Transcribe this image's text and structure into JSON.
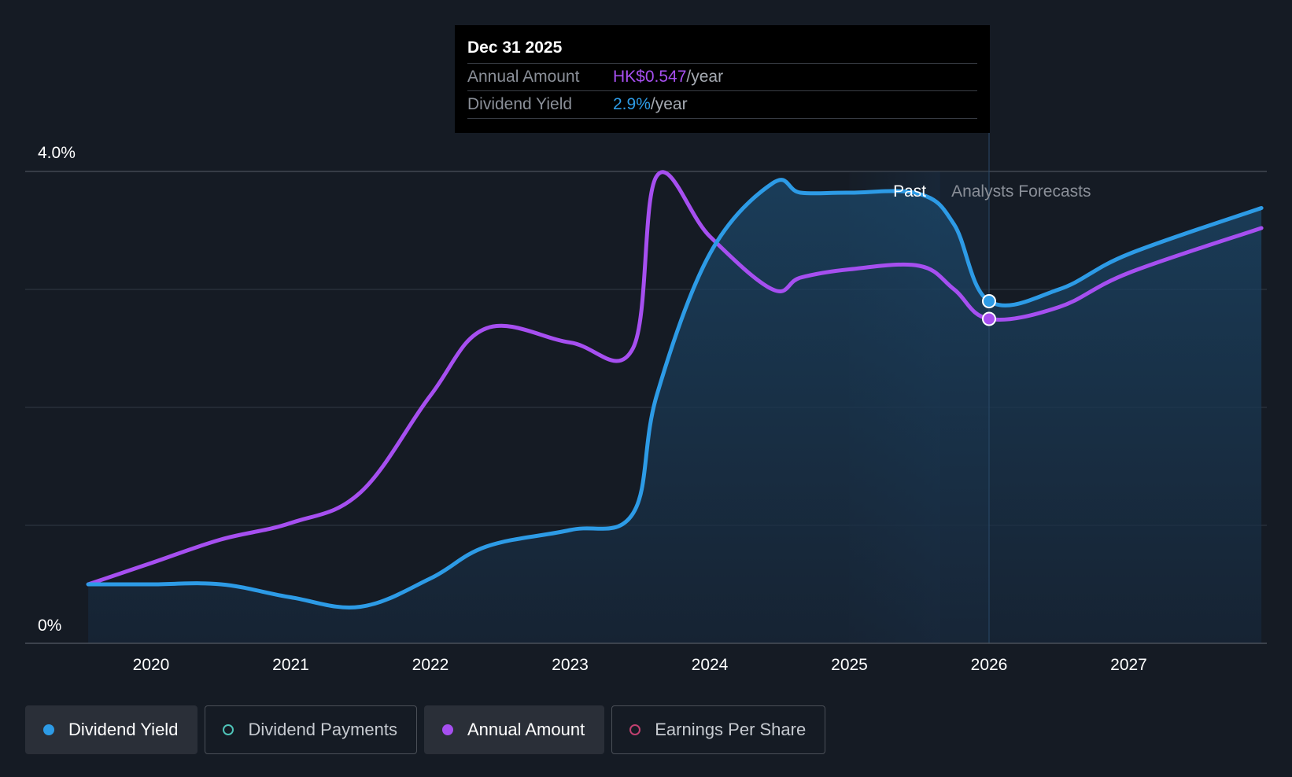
{
  "tooltip": {
    "date": "Dec 31 2025",
    "rows": [
      {
        "label": "Annual Amount",
        "value": "HK$0.547",
        "unit": "/year"
      },
      {
        "label": "Dividend Yield",
        "value": "2.9%",
        "unit": "/year"
      }
    ]
  },
  "regions": {
    "past": "Past",
    "forecast": "Analysts Forecasts"
  },
  "legend": [
    {
      "label": "Dividend Yield",
      "color": "#2d9be6",
      "active": true
    },
    {
      "label": "Dividend Payments",
      "color": "#4fc3b8",
      "active": false
    },
    {
      "label": "Annual Amount",
      "color": "#a64ff0",
      "active": true
    },
    {
      "label": "Earnings Per Share",
      "color": "#c0406f",
      "active": false
    }
  ],
  "chart_data": {
    "type": "line",
    "y_tick_labels": [
      "4.0%",
      "0%"
    ],
    "ylim": [
      0,
      4.0
    ],
    "x_tick_labels": [
      "2020",
      "2021",
      "2022",
      "2023",
      "2024",
      "2025",
      "2026",
      "2027"
    ],
    "xlim": [
      2019.45,
      2027.95
    ],
    "grid": true,
    "highlight_date": 2026.0,
    "series": [
      {
        "name": "Dividend Yield",
        "color": "#2d9be6",
        "points": [
          [
            2019.55,
            0.5
          ],
          [
            2020.0,
            0.5
          ],
          [
            2020.5,
            0.5
          ],
          [
            2021.0,
            0.39
          ],
          [
            2021.5,
            0.31
          ],
          [
            2022.0,
            0.55
          ],
          [
            2022.4,
            0.82
          ],
          [
            2023.0,
            0.96
          ],
          [
            2023.45,
            1.1
          ],
          [
            2023.62,
            2.1
          ],
          [
            2024.0,
            3.3
          ],
          [
            2024.45,
            3.9
          ],
          [
            2024.65,
            3.82
          ],
          [
            2025.0,
            3.82
          ],
          [
            2025.5,
            3.81
          ],
          [
            2025.75,
            3.55
          ],
          [
            2026.0,
            2.9
          ],
          [
            2026.5,
            3.0
          ],
          [
            2027.0,
            3.3
          ],
          [
            2027.95,
            3.69
          ]
        ]
      },
      {
        "name": "Annual Amount",
        "color": "#a64ff0",
        "points": [
          [
            2019.55,
            0.5
          ],
          [
            2020.0,
            0.68
          ],
          [
            2020.5,
            0.88
          ],
          [
            2021.0,
            1.02
          ],
          [
            2021.5,
            1.28
          ],
          [
            2022.0,
            2.1
          ],
          [
            2022.4,
            2.67
          ],
          [
            2023.0,
            2.55
          ],
          [
            2023.45,
            2.5
          ],
          [
            2023.62,
            3.96
          ],
          [
            2024.0,
            3.45
          ],
          [
            2024.45,
            3.0
          ],
          [
            2024.65,
            3.1
          ],
          [
            2025.0,
            3.17
          ],
          [
            2025.5,
            3.2
          ],
          [
            2025.75,
            3.0
          ],
          [
            2026.0,
            2.75
          ],
          [
            2026.5,
            2.85
          ],
          [
            2027.0,
            3.14
          ],
          [
            2027.95,
            3.52
          ]
        ]
      }
    ]
  }
}
